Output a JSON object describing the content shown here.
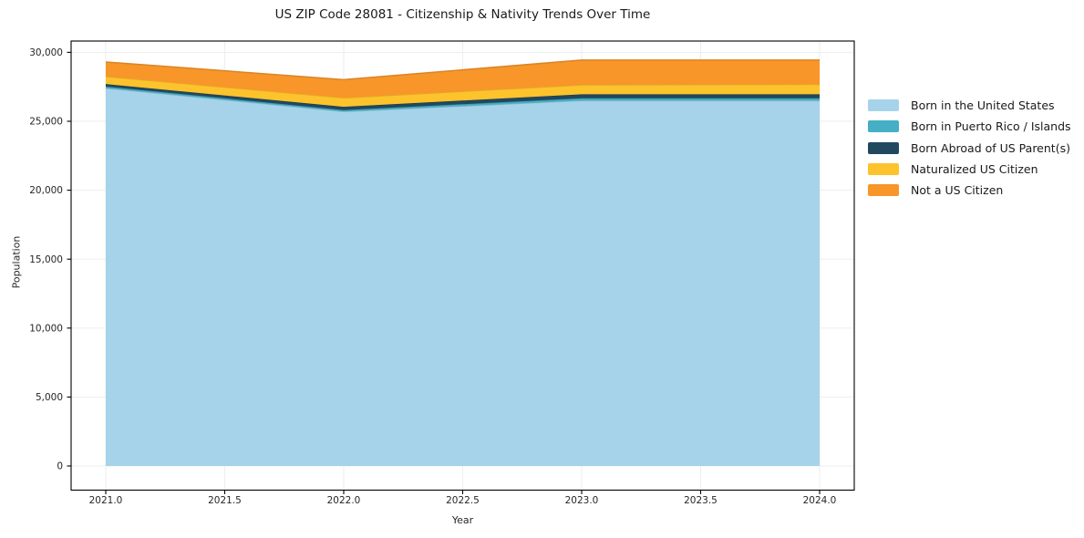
{
  "chart_data": {
    "type": "area",
    "stacked": true,
    "title": "US ZIP Code 28081 - Citizenship & Nativity Trends Over Time",
    "xlabel": "Year",
    "ylabel": "Population",
    "x": [
      2021,
      2022,
      2023,
      2024
    ],
    "series": [
      {
        "name": "Born in the United States",
        "color": "#A6D3EA",
        "values": [
          27400,
          25700,
          26500,
          26500
        ]
      },
      {
        "name": "Born in Puerto Rico / Islands",
        "color": "#44AFC5",
        "values": [
          120,
          110,
          170,
          170
        ]
      },
      {
        "name": "Born Abroad of US Parent(s)",
        "color": "#21485E",
        "values": [
          180,
          240,
          290,
          290
        ]
      },
      {
        "name": "Naturalized US Citizen",
        "color": "#FDC32D",
        "values": [
          550,
          650,
          680,
          720
        ]
      },
      {
        "name": "Not a US Citizen",
        "color": "#F8962A",
        "values": [
          1050,
          1320,
          1800,
          1760
        ]
      }
    ],
    "xticks": [
      2021.0,
      2021.5,
      2022.0,
      2022.5,
      2023.0,
      2023.5,
      2024.0
    ],
    "xtick_labels": [
      "2021.0",
      "2021.5",
      "2022.0",
      "2022.5",
      "2023.0",
      "2023.5",
      "2024.0"
    ],
    "yticks": [
      0,
      5000,
      10000,
      15000,
      20000,
      25000,
      30000
    ],
    "ytick_labels": [
      "0",
      "5,000",
      "10,000",
      "15,000",
      "20,000",
      "25,000",
      "30,000"
    ],
    "xlim": [
      2020.85,
      2024.15
    ],
    "ylim": [
      -1750,
      30800
    ],
    "grid": true,
    "legend_position": "right"
  }
}
